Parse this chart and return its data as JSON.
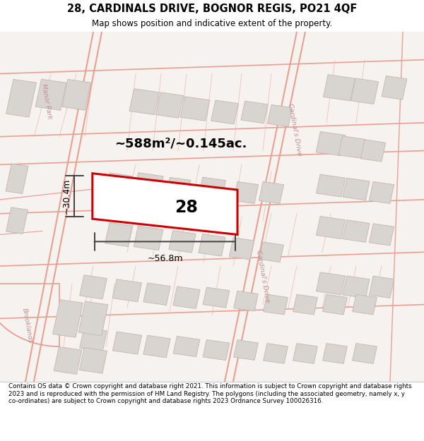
{
  "title": "28, CARDINALS DRIVE, BOGNOR REGIS, PO21 4QF",
  "subtitle": "Map shows position and indicative extent of the property.",
  "area_text": "~588m²/~0.145ac.",
  "number_label": "28",
  "width_label": "~56.8m",
  "height_label": "~30.4m",
  "footer_text": "Contains OS data © Crown copyright and database right 2021. This information is subject to Crown copyright and database rights 2023 and is reproduced with the permission of HM Land Registry. The polygons (including the associated geometry, namely x, y co-ordinates) are subject to Crown copyright and database rights 2023 Ordnance Survey 100026316.",
  "bg_color": "#f2eeec",
  "map_bg": "#f5f2f0",
  "road_color": "#e8a090",
  "building_fill": "#d8d4d0",
  "building_edge": "#c0b8b4",
  "plot_fill": "#ffffff",
  "plot_edge": "#cc0000",
  "dim_color": "#404040",
  "title_color": "#000000",
  "footer_color": "#000000",
  "street_label_color": "#c09090",
  "figsize": [
    6.0,
    6.25
  ],
  "dpi": 100
}
